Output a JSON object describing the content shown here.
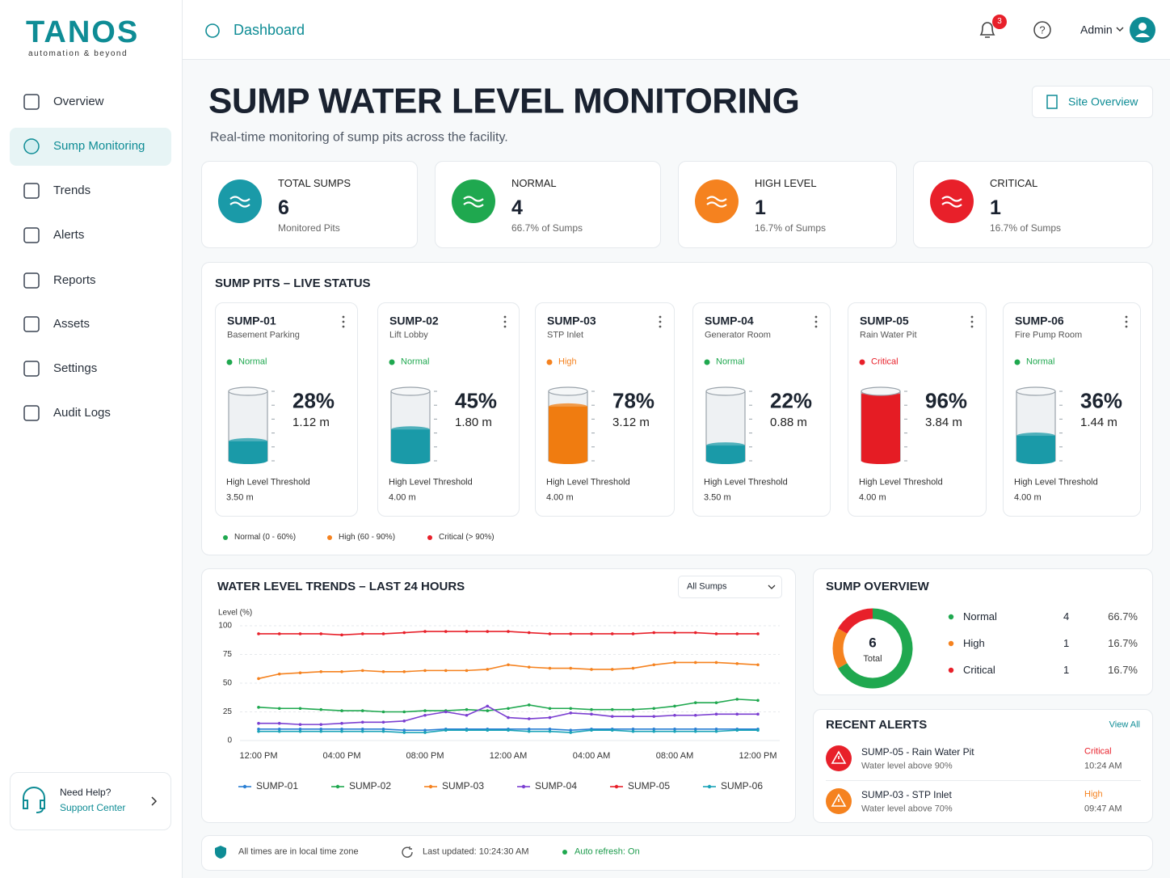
{
  "sidebar": {
    "brand": "TANOS",
    "tagline": "automation & beyond",
    "nav": [
      "Overview",
      "Sump Monitoring",
      "Trends",
      "Alerts",
      "Reports",
      "Assets",
      "Settings",
      "Audit Logs"
    ],
    "help_title": "Need Help?",
    "help_link": "Support Center"
  },
  "header": {
    "breadcrumb": "Dashboard",
    "notifications": "3",
    "user": "Admin"
  },
  "page": {
    "title": "SUMP WATER LEVEL MONITORING",
    "subtitle": "Real-time monitoring of sump pits across the facility.",
    "button": "Site Overview"
  },
  "kpis": [
    {
      "label": "TOTAL SUMPS",
      "value": "6",
      "note": "Monitored Pits",
      "color": "#1a9aa8"
    },
    {
      "label": "NORMAL",
      "value": "4",
      "note": "66.7% of Sumps",
      "color": "#1fa84f"
    },
    {
      "label": "HIGH LEVEL",
      "value": "1",
      "note": "16.7% of Sumps",
      "color": "#f5821f"
    },
    {
      "label": "CRITICAL",
      "value": "1",
      "note": "16.7% of Sumps",
      "color": "#e8202a"
    }
  ],
  "live": {
    "title": "SUMP PITS – LIVE STATUS",
    "sumps": [
      {
        "id": "SUMP-01",
        "location": "Basement Parking",
        "status": "Normal",
        "status_color": "#1fa84f",
        "color": "#1a9aa8",
        "level": 28,
        "level_label": "28%",
        "depth": "1.12 m",
        "threshold_label": "High Level Threshold",
        "threshold": "3.50 m"
      },
      {
        "id": "SUMP-02",
        "location": "Lift Lobby",
        "status": "Normal",
        "status_color": "#1fa84f",
        "color": "#1a9aa8",
        "level": 45,
        "level_label": "45%",
        "depth": "1.80 m",
        "threshold_label": "High Level Threshold",
        "threshold": "4.00 m"
      },
      {
        "id": "SUMP-03",
        "location": "STP Inlet",
        "status": "High",
        "status_color": "#f5821f",
        "color": "#f07c10",
        "level": 78,
        "level_label": "78%",
        "depth": "3.12 m",
        "threshold_label": "High Level Threshold",
        "threshold": "4.00 m"
      },
      {
        "id": "SUMP-04",
        "location": "Generator Room",
        "status": "Normal",
        "status_color": "#1fa84f",
        "color": "#1a9aa8",
        "level": 22,
        "level_label": "22%",
        "depth": "0.88 m",
        "threshold_label": "High Level Threshold",
        "threshold": "3.50 m"
      },
      {
        "id": "SUMP-05",
        "location": "Rain Water Pit",
        "status": "Critical",
        "status_color": "#e8202a",
        "color": "#e51c24",
        "level": 96,
        "level_label": "96%",
        "depth": "3.84 m",
        "threshold_label": "High Level Threshold",
        "threshold": "4.00 m"
      },
      {
        "id": "SUMP-06",
        "location": "Fire Pump Room",
        "status": "Normal",
        "status_color": "#1fa84f",
        "color": "#1a9aa8",
        "level": 36,
        "level_label": "36%",
        "depth": "1.44 m",
        "threshold_label": "High Level Threshold",
        "threshold": "4.00 m"
      }
    ],
    "legend": [
      "Normal (0 - 60%)",
      "High (60 - 90%)",
      "Critical (> 90%)"
    ],
    "legend_colors": [
      "#1fa84f",
      "#f5821f",
      "#e8202a"
    ]
  },
  "chart_data": {
    "type": "line",
    "title": "WATER LEVEL TRENDS – LAST 24 HOURS",
    "filter": "All Sumps",
    "ylabel": "Level (%)",
    "categories": [
      "12:00 PM",
      null,
      null,
      null,
      "04:00 PM",
      null,
      null,
      null,
      "08:00 PM",
      null,
      null,
      null,
      "12:00 AM",
      null,
      null,
      null,
      "04:00 AM",
      null,
      null,
      null,
      "08:00 AM",
      null,
      null,
      null,
      "12:00 PM"
    ],
    "ylim": [
      0,
      100
    ],
    "yticks": [
      0,
      25,
      50,
      75,
      100
    ],
    "grid": true,
    "series": [
      {
        "name": "SUMP-01",
        "color": "#2a7fd4",
        "values": [
          10,
          10,
          10,
          10,
          10,
          10,
          10,
          9,
          9,
          10,
          10,
          10,
          10,
          10,
          10,
          9,
          10,
          10,
          10,
          10,
          10,
          10,
          10,
          10,
          10
        ]
      },
      {
        "name": "SUMP-02",
        "color": "#1fa84f",
        "values": [
          29,
          28,
          28,
          27,
          26,
          26,
          25,
          25,
          26,
          26,
          27,
          26,
          28,
          31,
          28,
          28,
          27,
          27,
          27,
          28,
          30,
          33,
          33,
          36,
          35
        ]
      },
      {
        "name": "SUMP-03",
        "color": "#f5821f",
        "values": [
          54,
          58,
          59,
          60,
          60,
          61,
          60,
          60,
          61,
          61,
          61,
          62,
          66,
          64,
          63,
          63,
          62,
          62,
          63,
          66,
          68,
          68,
          68,
          67,
          66
        ]
      },
      {
        "name": "SUMP-04",
        "color": "#7b3fd1",
        "values": [
          15,
          15,
          14,
          14,
          15,
          16,
          16,
          17,
          22,
          25,
          22,
          30,
          20,
          19,
          20,
          24,
          23,
          21,
          21,
          21,
          22,
          22,
          23,
          23,
          23
        ]
      },
      {
        "name": "SUMP-05",
        "color": "#e8202a",
        "values": [
          93,
          93,
          93,
          93,
          92,
          93,
          93,
          94,
          95,
          95,
          95,
          95,
          95,
          94,
          93,
          93,
          93,
          93,
          93,
          94,
          94,
          94,
          93,
          93,
          93
        ]
      },
      {
        "name": "SUMP-06",
        "color": "#1aa3b8",
        "values": [
          8,
          8,
          8,
          8,
          8,
          8,
          8,
          7,
          7,
          9,
          9,
          9,
          9,
          8,
          8,
          7,
          9,
          9,
          8,
          8,
          8,
          8,
          8,
          9,
          9
        ]
      }
    ]
  },
  "overview": {
    "type": "pie",
    "title": "SUMP OVERVIEW",
    "total": "6",
    "total_label": "Total",
    "categories": [
      "Normal",
      "High",
      "Critical"
    ],
    "values": [
      4,
      1,
      1
    ],
    "percent_labels": [
      "66.7%",
      "16.7%",
      "16.7%"
    ],
    "colors": [
      "#1fa84f",
      "#f5821f",
      "#e8202a"
    ]
  },
  "alerts": {
    "title": "RECENT ALERTS",
    "action": "View All",
    "items": [
      {
        "title": "SUMP-05 - Rain Water Pit",
        "detail": "Water level above 90%",
        "severity": "Critical",
        "time": "10:24 AM",
        "color": "#e8202a"
      },
      {
        "title": "SUMP-03 - STP Inlet",
        "detail": "Water level above 70%",
        "severity": "High",
        "time": "09:47 AM",
        "color": "#f5821f"
      }
    ]
  },
  "footer": {
    "timezone": "All times are in local time zone",
    "updated": "Last updated: 10:24:30 AM",
    "refresh": "Auto refresh: On"
  }
}
